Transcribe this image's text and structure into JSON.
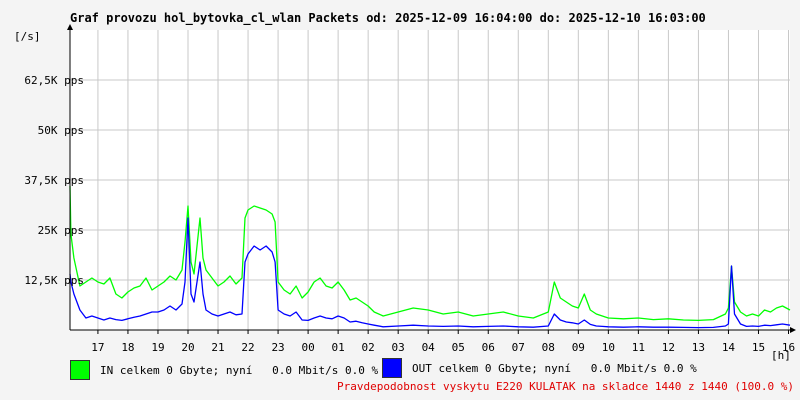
{
  "header": {
    "title": "Graf provozu hol_bytovka_cl_wlan Packets od: 2025-12-09 16:04:00 do: 2025-12-10 16:03:00"
  },
  "chart_data": {
    "type": "area",
    "y_unit": "[/s]",
    "x_unit": "[h]",
    "ylim": [
      0,
      75000
    ],
    "y_ticks": [
      {
        "value": 12500,
        "label": "12,5K pps"
      },
      {
        "value": 25000,
        "label": "25K pps"
      },
      {
        "value": 37500,
        "label": "37,5K pps"
      },
      {
        "value": 50000,
        "label": "50K pps"
      },
      {
        "value": 62500,
        "label": "62,5K pps"
      }
    ],
    "x_range": [
      16.07,
      40.05
    ],
    "x_ticks": [
      {
        "value": 17,
        "label": "17"
      },
      {
        "value": 18,
        "label": "18"
      },
      {
        "value": 19,
        "label": "19"
      },
      {
        "value": 20,
        "label": "20"
      },
      {
        "value": 21,
        "label": "21"
      },
      {
        "value": 22,
        "label": "22"
      },
      {
        "value": 23,
        "label": "23"
      },
      {
        "value": 24,
        "label": "00"
      },
      {
        "value": 25,
        "label": "01"
      },
      {
        "value": 26,
        "label": "02"
      },
      {
        "value": 27,
        "label": "03"
      },
      {
        "value": 28,
        "label": "04"
      },
      {
        "value": 29,
        "label": "05"
      },
      {
        "value": 30,
        "label": "06"
      },
      {
        "value": 31,
        "label": "07"
      },
      {
        "value": 32,
        "label": "08"
      },
      {
        "value": 33,
        "label": "09"
      },
      {
        "value": 34,
        "label": "10"
      },
      {
        "value": 35,
        "label": "11"
      },
      {
        "value": 36,
        "label": "12"
      },
      {
        "value": 37,
        "label": "13"
      },
      {
        "value": 38,
        "label": "14"
      },
      {
        "value": 39,
        "label": "15"
      },
      {
        "value": 40,
        "label": "16"
      }
    ],
    "grid": true,
    "series": [
      {
        "color": "#00ff00",
        "x": [
          16.07,
          16.1,
          16.2,
          16.4,
          16.6,
          16.8,
          17.0,
          17.2,
          17.4,
          17.6,
          17.8,
          18.0,
          18.2,
          18.4,
          18.6,
          18.8,
          19.0,
          19.2,
          19.4,
          19.6,
          19.8,
          19.9,
          20.0,
          20.1,
          20.2,
          20.4,
          20.5,
          20.6,
          20.8,
          21.0,
          21.2,
          21.4,
          21.6,
          21.8,
          21.9,
          22.0,
          22.2,
          22.4,
          22.6,
          22.8,
          22.9,
          23.0,
          23.2,
          23.4,
          23.6,
          23.8,
          24.0,
          24.2,
          24.4,
          24.6,
          24.8,
          25.0,
          25.2,
          25.4,
          25.6,
          25.8,
          26.0,
          26.2,
          26.5,
          27.0,
          27.5,
          28.0,
          28.5,
          29.0,
          29.5,
          30.0,
          30.5,
          31.0,
          31.5,
          32.0,
          32.2,
          32.4,
          32.6,
          32.8,
          33.0,
          33.2,
          33.4,
          33.6,
          33.8,
          34.0,
          34.5,
          35.0,
          35.5,
          36.0,
          36.5,
          37.0,
          37.5,
          37.9,
          38.0,
          38.1,
          38.2,
          38.4,
          38.6,
          38.8,
          39.0,
          39.2,
          39.4,
          39.6,
          39.8,
          40.05
        ],
        "values": [
          36000,
          24000,
          18000,
          11000,
          12000,
          13000,
          12000,
          11500,
          13000,
          9000,
          8000,
          9500,
          10500,
          11000,
          13000,
          10000,
          11000,
          12000,
          13500,
          12500,
          15000,
          22000,
          31000,
          17000,
          14000,
          28000,
          18000,
          15000,
          13000,
          11000,
          12000,
          13500,
          11500,
          13000,
          28000,
          30000,
          31000,
          30500,
          30000,
          29000,
          27000,
          12000,
          10000,
          9000,
          11000,
          8000,
          9500,
          12000,
          13000,
          11000,
          10500,
          12000,
          10000,
          7500,
          8000,
          7000,
          6000,
          4500,
          3500,
          4500,
          5500,
          5000,
          4000,
          4500,
          3500,
          4000,
          4500,
          3500,
          3000,
          4500,
          12000,
          8000,
          7000,
          6000,
          5500,
          9000,
          5000,
          4000,
          3500,
          3000,
          2800,
          3000,
          2600,
          2800,
          2500,
          2400,
          2600,
          4000,
          5500,
          16000,
          7000,
          4500,
          3500,
          4000,
          3500,
          5000,
          4500,
          5500,
          6000,
          5000
        ]
      },
      {
        "color": "#0000ff",
        "x": [
          16.07,
          16.1,
          16.2,
          16.4,
          16.6,
          16.8,
          17.0,
          17.2,
          17.4,
          17.6,
          17.8,
          18.0,
          18.2,
          18.4,
          18.6,
          18.8,
          19.0,
          19.2,
          19.4,
          19.6,
          19.8,
          19.9,
          20.0,
          20.1,
          20.2,
          20.4,
          20.5,
          20.6,
          20.8,
          21.0,
          21.2,
          21.4,
          21.6,
          21.8,
          21.9,
          22.0,
          22.2,
          22.4,
          22.6,
          22.8,
          22.9,
          23.0,
          23.2,
          23.4,
          23.6,
          23.8,
          24.0,
          24.2,
          24.4,
          24.6,
          24.8,
          25.0,
          25.2,
          25.4,
          25.6,
          25.8,
          26.0,
          26.2,
          26.5,
          27.0,
          27.5,
          28.0,
          28.5,
          29.0,
          29.5,
          30.0,
          30.5,
          31.0,
          31.5,
          32.0,
          32.2,
          32.4,
          32.6,
          32.8,
          33.0,
          33.2,
          33.4,
          33.6,
          33.8,
          34.0,
          34.5,
          35.0,
          35.5,
          36.0,
          36.5,
          37.0,
          37.5,
          37.9,
          38.0,
          38.1,
          38.2,
          38.4,
          38.6,
          38.8,
          39.0,
          39.2,
          39.4,
          39.6,
          39.8,
          40.05
        ],
        "values": [
          14000,
          12000,
          9000,
          5000,
          3000,
          3500,
          3000,
          2500,
          3000,
          2600,
          2400,
          2800,
          3200,
          3500,
          4000,
          4500,
          4500,
          5000,
          6000,
          5000,
          6500,
          12000,
          28000,
          9000,
          7000,
          17000,
          9000,
          5000,
          4000,
          3500,
          4000,
          4500,
          3800,
          4000,
          17000,
          19000,
          21000,
          20000,
          21000,
          19500,
          17000,
          5000,
          4000,
          3500,
          4500,
          2500,
          2400,
          3000,
          3500,
          3000,
          2800,
          3500,
          3000,
          2000,
          2200,
          1800,
          1500,
          1200,
          800,
          1000,
          1200,
          1000,
          900,
          1000,
          800,
          900,
          1000,
          800,
          700,
          1000,
          4000,
          2500,
          2000,
          1800,
          1500,
          2500,
          1400,
          1000,
          900,
          800,
          700,
          800,
          700,
          700,
          650,
          600,
          650,
          1000,
          1500,
          16000,
          4000,
          1500,
          900,
          1000,
          900,
          1200,
          1100,
          1300,
          1500,
          1200
        ]
      }
    ]
  },
  "legend": {
    "in_text": "IN celkem 0 Gbyte; nyní   0.0 Mbit/s 0.0 %",
    "out_text": "OUT celkem 0 Gbyte; nyní   0.0 Mbit/s 0.0 %"
  },
  "footnote": "Pravdepodobnost vyskytu E220 KULATAK na skladce 1440 z 1440 (100.0 %)"
}
